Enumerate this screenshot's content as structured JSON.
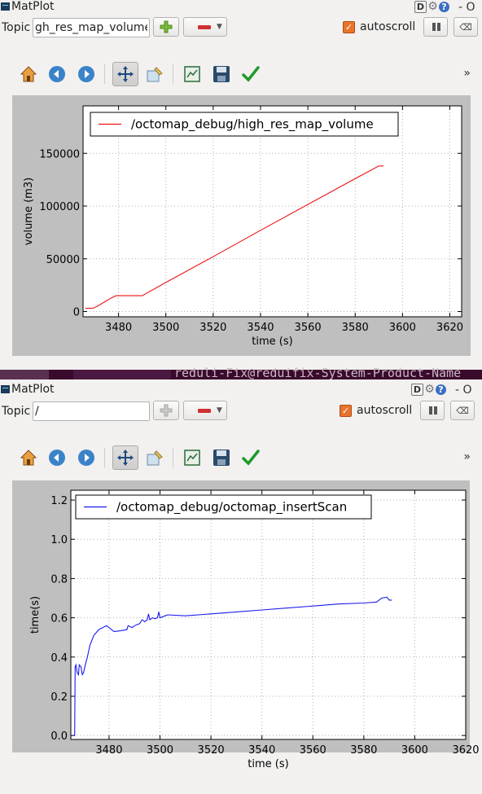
{
  "windows": [
    {
      "title": "MatPlot",
      "topic_label": "Topic",
      "topic_value": "gh_res_map_volume",
      "autoscroll_label": "autoscroll",
      "autoscroll_checked": true,
      "plus_enabled": true,
      "titlebar_icons": [
        "D",
        "gear-icon",
        "help-icon"
      ],
      "titlebar_trailing": "- O",
      "toolbar": [
        "home-icon",
        "back-icon",
        "forward-icon",
        "pan-icon",
        "zoom-icon",
        "subplots-icon",
        "save-icon",
        "edit-check-icon"
      ],
      "toolbar_more": "»",
      "chart_data": {
        "type": "line",
        "xlabel": "time (s)",
        "ylabel": "volume (m3)",
        "xlim": [
          3465,
          3625
        ],
        "ylim": [
          -5000,
          195000
        ],
        "xticks": [
          3480,
          3500,
          3520,
          3540,
          3560,
          3580,
          3600,
          3620
        ],
        "yticks": [
          0,
          50000,
          100000,
          150000
        ],
        "legend": "top-left",
        "series": [
          {
            "name": "/octomap_debug/high_res_map_volume",
            "color": "#ee1111",
            "x": [
              3466,
              3469,
              3471,
              3474,
              3477,
              3479,
              3481,
              3485,
              3490,
              3500,
              3520,
              3540,
              3560,
              3580,
              3590,
              3592
            ],
            "y": [
              3000,
              3000,
              5000,
              9000,
              13000,
              15000,
              15000,
              15000,
              15000,
              27500,
              52000,
              77000,
              101500,
              126000,
              138000,
              138000
            ]
          }
        ]
      }
    },
    {
      "title": "MatPlot",
      "topic_label": "Topic",
      "topic_value": "/",
      "autoscroll_label": "autoscroll",
      "autoscroll_checked": true,
      "plus_enabled": false,
      "titlebar_icons": [
        "D",
        "gear-icon",
        "help-icon"
      ],
      "titlebar_trailing": "- O",
      "toolbar": [
        "home-icon",
        "back-icon",
        "forward-icon",
        "pan-icon",
        "zoom-icon",
        "subplots-icon",
        "save-icon",
        "edit-check-icon"
      ],
      "toolbar_more": "»",
      "chart_data": {
        "type": "line",
        "xlabel": "time (s)",
        "ylabel": "time(s)",
        "xlim": [
          3465,
          3620
        ],
        "ylim": [
          -0.02,
          1.25
        ],
        "xticks": [
          3480,
          3500,
          3520,
          3540,
          3560,
          3580,
          3600,
          3620
        ],
        "yticks": [
          0.0,
          0.2,
          0.4,
          0.6,
          0.8,
          1.0,
          1.2
        ],
        "ytick_labels": [
          "0.0",
          "0.2",
          "0.4",
          "0.6",
          "0.8",
          "1.0",
          "1.2"
        ],
        "legend": "top-left",
        "series": [
          {
            "name": "/octomap_debug/octomap_insertScan",
            "color": "#1a1aee",
            "x": [
              3465.5,
              3466.5,
              3466.7,
              3467,
              3467.5,
              3468,
              3468.3,
              3469,
              3469.5,
              3470,
              3470.5,
              3471.5,
              3472.5,
              3474,
              3476,
              3479,
              3480,
              3482,
              3485,
              3487,
              3487.5,
              3489,
              3490,
              3492,
              3493,
              3494,
              3495,
              3495.5,
              3496,
              3496.5,
              3497,
              3498,
              3499,
              3499.5,
              3500,
              3502,
              3503,
              3510,
              3520,
              3530,
              3540,
              3550,
              3560,
              3570,
              3580,
              3585,
              3587,
              3589,
              3590,
              3591
            ],
            "y": [
              0.0,
              0.0,
              0.35,
              0.36,
              0.32,
              0.31,
              0.36,
              0.35,
              0.31,
              0.32,
              0.35,
              0.4,
              0.46,
              0.51,
              0.54,
              0.56,
              0.55,
              0.53,
              0.535,
              0.54,
              0.56,
              0.55,
              0.56,
              0.57,
              0.59,
              0.58,
              0.59,
              0.62,
              0.59,
              0.595,
              0.6,
              0.595,
              0.6,
              0.63,
              0.6,
              0.61,
              0.615,
              0.61,
              0.62,
              0.63,
              0.64,
              0.65,
              0.66,
              0.67,
              0.675,
              0.68,
              0.7,
              0.705,
              0.69,
              0.69
            ]
          }
        ]
      }
    }
  ],
  "background_terminal_text": "reduli-Fix@reduifix-System-Product-Name"
}
